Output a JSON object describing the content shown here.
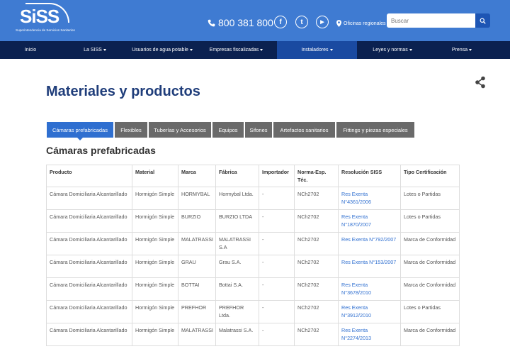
{
  "header": {
    "logo_text": "SiSS",
    "logo_subtitle": "Superintendencia de Servicios Sanitarios",
    "phone": "800 381 800",
    "social": [
      {
        "name": "facebook-icon",
        "glyph": "f"
      },
      {
        "name": "twitter-icon",
        "glyph": "t"
      },
      {
        "name": "youtube-icon",
        "glyph": "▶"
      }
    ],
    "oficinas": "Oficinas regionales",
    "search_placeholder": "Buscar",
    "colors": {
      "topbar": "#3f7bd2",
      "navbar": "#0b2150",
      "nav_active": "#1a4aa1",
      "accent": "#2f6fd0",
      "title": "#1f3d7a"
    }
  },
  "nav": {
    "items": [
      {
        "label": "Inicio",
        "dropdown": false
      },
      {
        "label": "La SISS",
        "dropdown": true
      },
      {
        "label": "Usuarios de agua potable",
        "dropdown": true
      },
      {
        "label": "Empresas fiscalizadas",
        "dropdown": true
      },
      {
        "label": "Instaladores",
        "dropdown": true
      },
      {
        "label": "Leyes y normas",
        "dropdown": true
      },
      {
        "label": "Prensa",
        "dropdown": true
      }
    ]
  },
  "page": {
    "title": "Materiales y productos",
    "section_title": "Cámaras prefabricadas"
  },
  "tabs": [
    {
      "label": "Cámaras prefabricadas",
      "active": true
    },
    {
      "label": "Flexibles",
      "active": false
    },
    {
      "label": "Tuberías y Accesorios",
      "active": false
    },
    {
      "label": "Equipos",
      "active": false
    },
    {
      "label": "Sifones",
      "active": false
    },
    {
      "label": "Artefactos sanitarios",
      "active": false
    },
    {
      "label": "Fittings y piezas especiales",
      "active": false
    }
  ],
  "table": {
    "headers": [
      "Producto",
      "Material",
      "Marca",
      "Fábrica",
      "Importador",
      "Norma-Esp. Téc.",
      "Resolución SISS",
      "Tipo Certificación"
    ],
    "rows": [
      [
        "Cámara Domiciliaria Alcantarillado",
        "Hormigón Simple",
        "HORMYBAL",
        "Hormybal Ltda.",
        "-",
        "NCh2702",
        "Res Exenta N°4361/2006",
        "Lotes o Partidas"
      ],
      [
        "Cámara Domiciliaria Alcantarillado",
        "Hormigón Simple",
        "BURZIO",
        "BURZIO LTDA",
        "-",
        "NCh2702",
        "Res Exenta N°1870/2007",
        "Lotes o Partidas"
      ],
      [
        "Cámara Domiciliaria Alcantarillado",
        "Hormigón Simple",
        "MALATRASSI",
        "MALATRASSI S.A",
        "-",
        "NCh2702",
        "Res Exenta N°792/2007",
        "Marca de Conformidad"
      ],
      [
        "Cámara Domiciliaria Alcantarillado",
        "Hormigón Simple",
        "GRAU",
        "Grau S.A.",
        "-",
        "NCh2702",
        "Res Exenta N°153/2007",
        "Marca de Conformidad"
      ],
      [
        "Cámara Domiciliaria Alcantarillado",
        "Hormigón Simple",
        "BOTTAI",
        "Bottai S.A.",
        "-",
        "NCh2702",
        "Res Exenta N°3678/2010",
        "Marca de Conformidad"
      ],
      [
        "Cámara Domiciliaria Alcantarillado",
        "Hormigón Simple",
        "PREFHOR",
        "PREFHOR Ltda.",
        "-",
        "NCh2702",
        "Res Exenta N°3912/2010",
        "Lotes o Partidas"
      ],
      [
        "Cámara Domiciliaria Alcantarillado",
        "Hormigón Simple",
        "MALATRASSI",
        "Malatrassi S.A.",
        "-",
        "NCh2702",
        "Res Exenta N°2274/2013",
        "Marca de Conformidad"
      ]
    ]
  }
}
